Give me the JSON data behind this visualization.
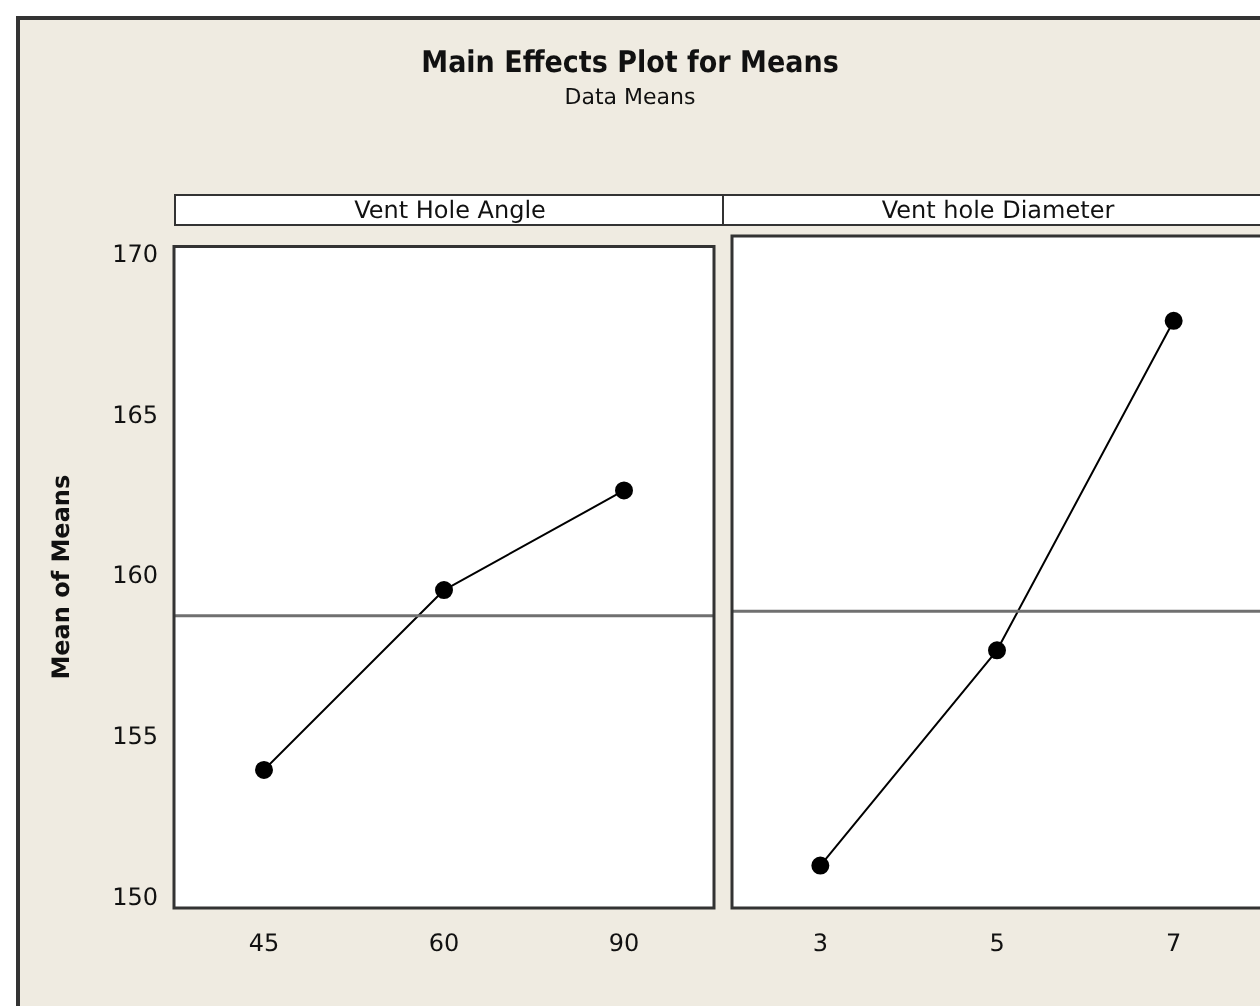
{
  "chart_data": [
    {
      "type": "line",
      "title": "Main Effects Plot for Means",
      "subtitle": "Data Means",
      "xlabel": "Vent Hole Angle",
      "ylabel": "Mean of Means",
      "categories": [
        "45",
        "60",
        "90"
      ],
      "series": [
        {
          "color": "#000000",
          "values": [
            154.0,
            159.6,
            162.7
          ]
        }
      ],
      "ylim": [
        149.7,
        170.3
      ],
      "yticks": [
        150,
        155,
        160,
        165,
        170
      ],
      "marker": "circle",
      "ref_lines": [
        {
          "axis": "y",
          "value": 158.8,
          "color": "#707070"
        }
      ]
    },
    {
      "type": "line",
      "xlabel": "Vent hole Diameter",
      "categories": [
        "3",
        "5",
        "7"
      ],
      "series": [
        {
          "color": "#000000",
          "values": [
            151.0,
            157.6,
            167.7
          ]
        }
      ],
      "ylim": [
        149.7,
        170.3
      ],
      "yticks": [
        150,
        155,
        160,
        165,
        170
      ],
      "marker": "circle",
      "tick_labels": "x",
      "ref_lines": [
        {
          "axis": "y",
          "value": 158.8,
          "color": "#707070"
        }
      ]
    }
  ]
}
